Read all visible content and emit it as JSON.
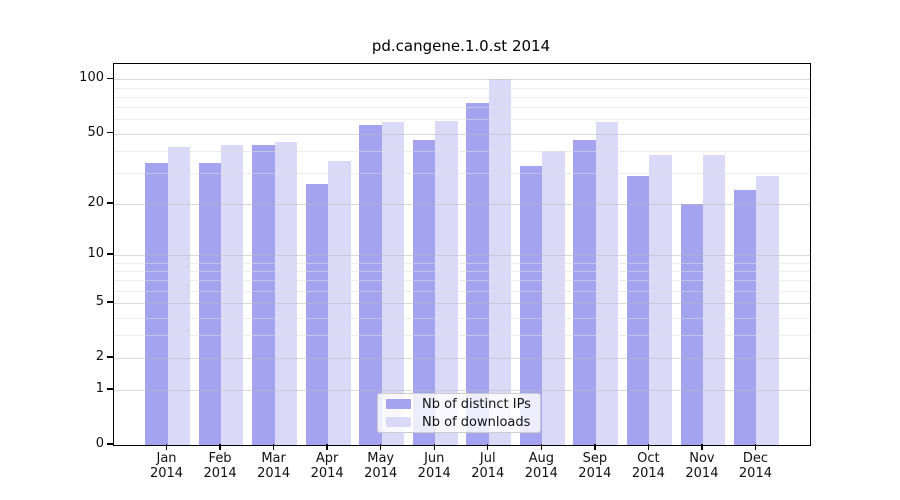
{
  "title": "pd.cangene.1.0.st 2014",
  "colors": {
    "bar_distinct_ips": "#a3a3f0",
    "bar_downloads": "#dadaf8",
    "axis": "#000000",
    "grid_major": "#d2d2d2",
    "grid_minor": "#ececec",
    "legend_border": "#cccccc"
  },
  "y_axis": {
    "tick_labels": [
      "100",
      "50",
      "20",
      "10",
      "5",
      "2",
      "1",
      "0"
    ],
    "tick_values": [
      100,
      50,
      20,
      10,
      5,
      2,
      1,
      0
    ],
    "minor_grid_values": [
      3,
      4,
      6,
      7,
      8,
      9,
      30,
      40,
      60,
      70,
      80,
      90
    ],
    "scale": "log10(value+1)",
    "max_log": 2.089
  },
  "x_axis": {
    "categories": [
      {
        "month": "Jan",
        "year": "2014"
      },
      {
        "month": "Feb",
        "year": "2014"
      },
      {
        "month": "Mar",
        "year": "2014"
      },
      {
        "month": "Apr",
        "year": "2014"
      },
      {
        "month": "May",
        "year": "2014"
      },
      {
        "month": "Jun",
        "year": "2014"
      },
      {
        "month": "Jul",
        "year": "2014"
      },
      {
        "month": "Aug",
        "year": "2014"
      },
      {
        "month": "Sep",
        "year": "2014"
      },
      {
        "month": "Oct",
        "year": "2014"
      },
      {
        "month": "Nov",
        "year": "2014"
      },
      {
        "month": "Dec",
        "year": "2014"
      }
    ]
  },
  "legend": {
    "items": [
      {
        "label": "Nb of distinct IPs",
        "color_key": "bar_distinct_ips"
      },
      {
        "label": "Nb of downloads",
        "color_key": "bar_downloads"
      }
    ]
  },
  "chart_data": {
    "type": "bar",
    "title": "pd.cangene.1.0.st 2014",
    "categories": [
      "Jan 2014",
      "Feb 2014",
      "Mar 2014",
      "Apr 2014",
      "May 2014",
      "Jun 2014",
      "Jul 2014",
      "Aug 2014",
      "Sep 2014",
      "Oct 2014",
      "Nov 2014",
      "Dec 2014"
    ],
    "series": [
      {
        "name": "Nb of distinct IPs",
        "values": [
          34,
          34,
          43,
          26,
          56,
          46,
          74,
          33,
          46,
          29,
          20,
          24
        ]
      },
      {
        "name": "Nb of downloads",
        "values": [
          42,
          43,
          45,
          35,
          58,
          59,
          100,
          40,
          58,
          38,
          38,
          29
        ]
      }
    ],
    "xlabel": "",
    "ylabel": "",
    "yscale": "log10(value+1)",
    "yticks": [
      0,
      1,
      2,
      5,
      10,
      20,
      50,
      100
    ],
    "ylim": [
      0,
      121
    ],
    "grid": true,
    "grid_over_bars": true,
    "legend_position": "bottom-center"
  }
}
